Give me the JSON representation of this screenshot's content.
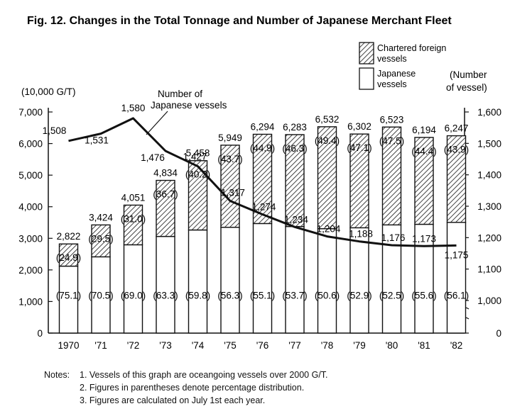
{
  "title": "Fig. 12.   Changes in the Total Tonnage and Number of Japanese Merchant Fleet",
  "chart_data": {
    "type": "bar",
    "categories": [
      "1970",
      "'71",
      "'72",
      "'73",
      "'74",
      "'75",
      "'76",
      "'77",
      "'78",
      "'79",
      "'80",
      "'81",
      "'82"
    ],
    "series": [
      {
        "name": "Japanese vessels",
        "values": [
          2119,
          2414,
          2795,
          3060,
          3264,
          3349,
          3468,
          3374,
          3305,
          3334,
          3425,
          3444,
          3505
        ]
      },
      {
        "name": "Chartered foreign vessels",
        "values": [
          703,
          1010,
          1256,
          1774,
          2194,
          2600,
          2826,
          2909,
          3227,
          2968,
          3098,
          2750,
          2742
        ]
      }
    ],
    "totals": [
      2822,
      3424,
      4051,
      4834,
      5458,
      5949,
      6294,
      6283,
      6532,
      6302,
      6523,
      6194,
      6247
    ],
    "totals_labels": [
      "2,822",
      "3,424",
      "4,051",
      "4,834",
      "5,458",
      "5,949",
      "6,294",
      "6,283",
      "6,532",
      "6,302",
      "6,523",
      "6,194",
      "6,247"
    ],
    "japanese_pct_labels": [
      "(75.1)",
      "(70.5)",
      "(69.0)",
      "(63.3)",
      "(59.8)",
      "(56.3)",
      "(55.1)",
      "(53.7)",
      "(50.6)",
      "(52.9)",
      "(52.5)",
      "(55.6)",
      "(56.1)"
    ],
    "chartered_pct_labels": [
      "(24.9)",
      "(29.5)",
      "(31.0)",
      "(36.7)",
      "(40.2)",
      "(43.7)",
      "(44.9)",
      "(46.3)",
      "(49.4)",
      "(47.1)",
      "(47.5)",
      "(44.4)",
      "(43.9)"
    ],
    "line": {
      "name": "Number of Japanese vessels",
      "values": [
        1508,
        1531,
        1580,
        1476,
        1427,
        1317,
        1274,
        1234,
        1204,
        1188,
        1176,
        1173,
        1175
      ],
      "labels": [
        "1,508",
        "1,531",
        "1,580",
        "1,476",
        "1,427",
        "1,317",
        "1,274",
        "1,234",
        "1,204",
        "1,188",
        "1,176",
        "1,173",
        "1,175"
      ]
    },
    "left_axis": {
      "label": "(10,000 G/T)",
      "ylim": [
        0,
        7000
      ],
      "ticks": [
        0,
        1000,
        2000,
        3000,
        4000,
        5000,
        6000,
        7000
      ],
      "tick_labels": [
        "0",
        "1,000",
        "2,000",
        "3,000",
        "4,000",
        "5,000",
        "6,000",
        "7,000"
      ]
    },
    "right_axis": {
      "label_line1": "(Number",
      "label_line2": "of vessel)",
      "broken": true,
      "ticks": [
        0,
        1000,
        1100,
        1200,
        1300,
        1400,
        1500,
        1600
      ],
      "tick_labels": [
        "0",
        "1,000",
        "1,100",
        "1,200",
        "1,300",
        "1,400",
        "1,500",
        "1,600"
      ]
    },
    "legend": {
      "placement": "top-right",
      "chartered_line1": "Chartered foreign",
      "chartered_line2": "vessels",
      "japanese_line1": "Japanese",
      "japanese_line2": "vessels"
    },
    "annotation_line1": "Number of",
    "annotation_line2": "Japanese vessels"
  },
  "notes": {
    "label": "Notes:",
    "items": [
      "1.  Vessels of this graph are oceangoing vessels over 2000 G/T.",
      "2.  Figures in parentheses denote percentage distribution.",
      "3.  Figures are calculated on July 1st each year."
    ]
  }
}
